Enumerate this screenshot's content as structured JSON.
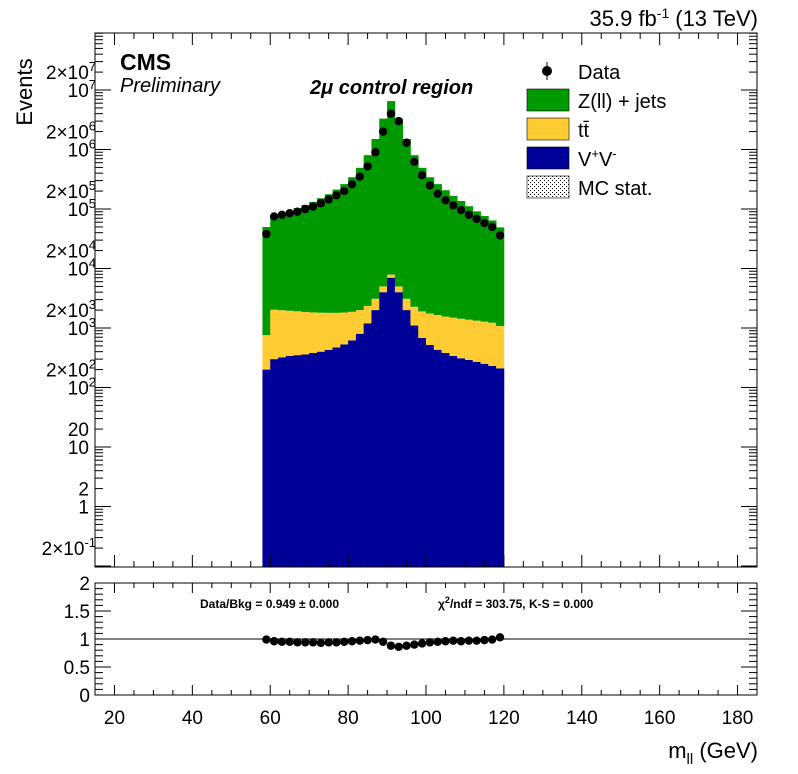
{
  "header": {
    "lumi": "35.9 fb",
    "lumi_exp": "-1",
    "energy": "(13 TeV)",
    "experiment": "CMS",
    "status": "Preliminary",
    "region": "2μ control region"
  },
  "legend": {
    "data": "Data",
    "zjets": "Z(ll) + jets",
    "ttbar": "tt̄",
    "vv_base": "V",
    "vv_sup1": "+",
    "vv_mid": "V",
    "vv_sup2": "-",
    "mcstat": "MC stat."
  },
  "colors": {
    "zjets": "#009900",
    "ttbar": "#ffcc33",
    "vv": "#000099",
    "data": "#000000"
  },
  "ratio": {
    "summary": "Data/Bkg = 0.949 ± 0.000",
    "chi2_label": "χ",
    "chi2_sup": "2",
    "chi2_value": "/ndf = 303.75,   K-S = 0.000"
  },
  "axes": {
    "ylabel": "Events",
    "xlabel_main": "m",
    "xlabel_sub": "ll",
    "xlabel_unit": " (GeV)",
    "xticks": [
      "20",
      "40",
      "60",
      "80",
      "100",
      "120",
      "140",
      "160",
      "180"
    ],
    "yticks_main": [
      {
        "b": "2×10",
        "e": "-1"
      },
      {
        "b": "1",
        "e": ""
      },
      {
        "b": "2",
        "e": ""
      },
      {
        "b": "10",
        "e": ""
      },
      {
        "b": "20",
        "e": ""
      },
      {
        "b": "10",
        "e": "2"
      },
      {
        "b": "2×10",
        "e": "2"
      },
      {
        "b": "10",
        "e": "3"
      },
      {
        "b": "2×10",
        "e": "3"
      },
      {
        "b": "10",
        "e": "4"
      },
      {
        "b": "2×10",
        "e": "4"
      },
      {
        "b": "10",
        "e": "5"
      },
      {
        "b": "2×10",
        "e": "5"
      },
      {
        "b": "10",
        "e": "6"
      },
      {
        "b": "2×10",
        "e": "6"
      },
      {
        "b": "10",
        "e": "7"
      },
      {
        "b": "2×10",
        "e": "7"
      }
    ],
    "yticks_ratio": [
      "0",
      "0.5",
      "1",
      "1.5",
      "2"
    ]
  },
  "chart_data": {
    "type": "bar",
    "stacked": true,
    "x_bin_width": 2,
    "xlim": [
      15,
      185
    ],
    "ylim": [
      0.1,
      50000000
    ],
    "ylog": true,
    "ratio_ylim": [
      0,
      2
    ],
    "bins": [
      59,
      61,
      63,
      65,
      67,
      69,
      71,
      73,
      75,
      77,
      79,
      81,
      83,
      85,
      87,
      89,
      91,
      93,
      95,
      97,
      99,
      101,
      103,
      105,
      107,
      109,
      111,
      113,
      115,
      117,
      119
    ],
    "series": [
      {
        "name": "V⁺V⁻",
        "values": [
          200,
          300,
          320,
          340,
          350,
          360,
          380,
          400,
          430,
          470,
          530,
          620,
          800,
          1200,
          2000,
          4000,
          7000,
          4000,
          2000,
          1100,
          680,
          520,
          430,
          380,
          340,
          310,
          290,
          270,
          250,
          230,
          210
        ]
      },
      {
        "name": "tt̄",
        "values": [
          560,
          1730,
          1670,
          1610,
          1560,
          1500,
          1450,
          1410,
          1370,
          1330,
          1290,
          1250,
          1200,
          1150,
          1100,
          1000,
          900,
          1000,
          1100,
          1180,
          1220,
          1230,
          1220,
          1180,
          1150,
          1120,
          1090,
          1060,
          1030,
          1000,
          870
        ]
      },
      {
        "name": "Z(ll) + jets",
        "values": [
          49000,
          76000,
          84000,
          92000,
          102000,
          115000,
          130000,
          150000,
          175000,
          210000,
          260000,
          340000,
          490000,
          800000,
          1500000,
          3300000,
          6500000,
          3300000,
          1500000,
          800000,
          490000,
          340000,
          260000,
          205000,
          165000,
          135000,
          110000,
          90000,
          75000,
          63000,
          48000
        ]
      }
    ],
    "data_points": [
      {
        "x": 59,
        "y": 38000
      },
      {
        "x": 61,
        "y": 75000
      },
      {
        "x": 63,
        "y": 80000
      },
      {
        "x": 65,
        "y": 85000
      },
      {
        "x": 67,
        "y": 90000
      },
      {
        "x": 69,
        "y": 100000
      },
      {
        "x": 71,
        "y": 110000
      },
      {
        "x": 73,
        "y": 125000
      },
      {
        "x": 75,
        "y": 145000
      },
      {
        "x": 77,
        "y": 170000
      },
      {
        "x": 79,
        "y": 200000
      },
      {
        "x": 81,
        "y": 260000
      },
      {
        "x": 83,
        "y": 350000
      },
      {
        "x": 85,
        "y": 520000
      },
      {
        "x": 87,
        "y": 900000
      },
      {
        "x": 89,
        "y": 2000000
      },
      {
        "x": 91,
        "y": 4000000
      },
      {
        "x": 93,
        "y": 3000000
      },
      {
        "x": 95,
        "y": 1300000
      },
      {
        "x": 97,
        "y": 620000
      },
      {
        "x": 99,
        "y": 370000
      },
      {
        "x": 101,
        "y": 250000
      },
      {
        "x": 103,
        "y": 180000
      },
      {
        "x": 105,
        "y": 140000
      },
      {
        "x": 107,
        "y": 115000
      },
      {
        "x": 109,
        "y": 96000
      },
      {
        "x": 111,
        "y": 80000
      },
      {
        "x": 113,
        "y": 68000
      },
      {
        "x": 115,
        "y": 58000
      },
      {
        "x": 117,
        "y": 50000
      },
      {
        "x": 119,
        "y": 36000
      }
    ],
    "ratio_points": [
      {
        "x": 59,
        "y": 0.99
      },
      {
        "x": 61,
        "y": 0.96
      },
      {
        "x": 63,
        "y": 0.95
      },
      {
        "x": 65,
        "y": 0.95
      },
      {
        "x": 67,
        "y": 0.94
      },
      {
        "x": 69,
        "y": 0.94
      },
      {
        "x": 71,
        "y": 0.94
      },
      {
        "x": 73,
        "y": 0.93
      },
      {
        "x": 75,
        "y": 0.94
      },
      {
        "x": 77,
        "y": 0.94
      },
      {
        "x": 79,
        "y": 0.95
      },
      {
        "x": 81,
        "y": 0.96
      },
      {
        "x": 83,
        "y": 0.97
      },
      {
        "x": 85,
        "y": 0.98
      },
      {
        "x": 87,
        "y": 0.99
      },
      {
        "x": 89,
        "y": 0.95
      },
      {
        "x": 91,
        "y": 0.88
      },
      {
        "x": 93,
        "y": 0.86
      },
      {
        "x": 95,
        "y": 0.88
      },
      {
        "x": 97,
        "y": 0.9
      },
      {
        "x": 99,
        "y": 0.92
      },
      {
        "x": 101,
        "y": 0.94
      },
      {
        "x": 103,
        "y": 0.95
      },
      {
        "x": 105,
        "y": 0.96
      },
      {
        "x": 107,
        "y": 0.97
      },
      {
        "x": 109,
        "y": 0.96
      },
      {
        "x": 111,
        "y": 0.97
      },
      {
        "x": 113,
        "y": 0.97
      },
      {
        "x": 115,
        "y": 0.98
      },
      {
        "x": 117,
        "y": 0.99
      },
      {
        "x": 119,
        "y": 1.03
      }
    ]
  }
}
